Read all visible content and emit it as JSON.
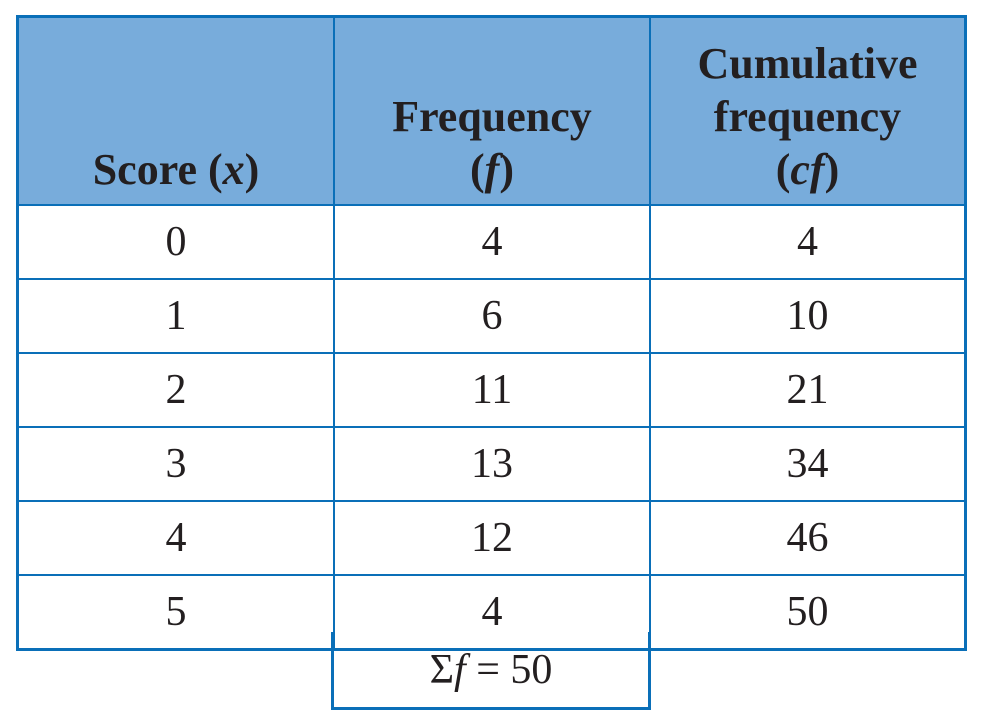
{
  "table": {
    "headers": [
      {
        "lines": [
          "Score (",
          "x",
          ")"
        ],
        "label": "Score (x)"
      },
      {
        "line1": "Frequency",
        "line2_pre": "(",
        "line2_var": "f",
        "line2_post": ")",
        "label": "Frequency (f)"
      },
      {
        "line1": "Cumulative",
        "line2": "frequency",
        "line3_pre": "(",
        "line3_var": "cf",
        "line3_post": ")",
        "label": "Cumulative frequency (cf)"
      }
    ],
    "rows": [
      {
        "score": "0",
        "frequency": "4",
        "cumulative": "4"
      },
      {
        "score": "1",
        "frequency": "6",
        "cumulative": "10"
      },
      {
        "score": "2",
        "frequency": "11",
        "cumulative": "21"
      },
      {
        "score": "3",
        "frequency": "13",
        "cumulative": "34"
      },
      {
        "score": "4",
        "frequency": "12",
        "cumulative": "46"
      },
      {
        "score": "5",
        "frequency": "4",
        "cumulative": "50"
      }
    ],
    "sum": {
      "sigma": "Σ",
      "var": "f",
      "rest": " = 50"
    }
  },
  "colors": {
    "header_bg": "#78acdb",
    "border": "#0a6fb8"
  }
}
